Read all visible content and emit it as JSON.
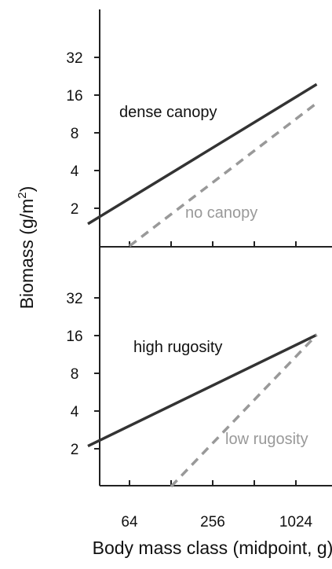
{
  "chart_data": {
    "type": "line",
    "xlabel": "Body mass class (midpoint, g)",
    "ylabel": "Biomass (g/m",
    "ylabel_sup": "2",
    "ylabel_close": ")",
    "x_scale": "log2",
    "y_scale": "log2",
    "x_ticks": [
      64,
      256,
      1024
    ],
    "y_ticks": [
      2,
      4,
      8,
      16,
      32
    ],
    "xlim": [
      22,
      2048
    ],
    "grid": false,
    "colors": {
      "solid": "#333333",
      "dashed": "#999999"
    },
    "panels": [
      {
        "ylim": [
          1,
          128
        ],
        "series": [
          {
            "name": "dense canopy",
            "style": "solid",
            "x": [
              32,
              1448
            ],
            "y": [
              1.5,
              19.5
            ]
          },
          {
            "name": "no canopy",
            "style": "dashed",
            "x": [
              64,
              1448
            ],
            "y": [
              1.0,
              13.8
            ]
          }
        ]
      },
      {
        "ylim": [
          1,
          128
        ],
        "series": [
          {
            "name": "high rugosity",
            "style": "solid",
            "x": [
              32,
              1448
            ],
            "y": [
              2.1,
              16.2
            ]
          },
          {
            "name": "low rugosity",
            "style": "dashed",
            "x": [
              128,
              1448
            ],
            "y": [
              1.0,
              16.2
            ]
          }
        ]
      }
    ]
  }
}
